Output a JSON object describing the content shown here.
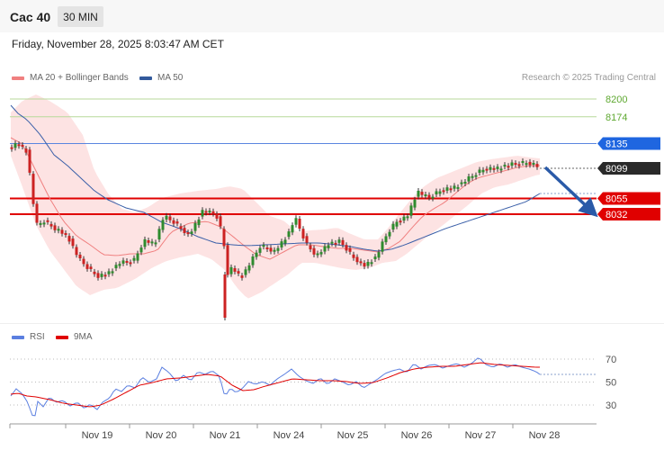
{
  "header": {
    "instrument": "Cac 40",
    "timeframe": "30 MIN",
    "datetime": "Friday, November 28, 2025 8:03:47 AM CET"
  },
  "legend": {
    "ma20_label": "MA 20 + Bollinger Bands",
    "ma20_color": "#f08080",
    "ma50_label": "MA 50",
    "ma50_color": "#335a9c",
    "rsi_label": "RSI",
    "rsi_color": "#5b7fe0",
    "ma9_label": "9MA",
    "ma9_color": "#e00000",
    "copyright": "Research © 2025 Trading Central"
  },
  "chart_data": [
    {
      "type": "candlestick",
      "title": "",
      "x_labels": [
        "Nov 19",
        "Nov 20",
        "Nov 21",
        "Nov 24",
        "Nov 25",
        "Nov 26",
        "Nov 27",
        "Nov 28"
      ],
      "ylim": [
        7830,
        8240
      ],
      "levels": [
        {
          "value": 8200,
          "label": "8200",
          "kind": "target",
          "color": "#5ea830"
        },
        {
          "value": 8174,
          "label": "8174",
          "kind": "target",
          "color": "#5ea830"
        },
        {
          "value": 8135,
          "label": "8135",
          "kind": "pivot",
          "color": "#2060d8"
        },
        {
          "value": 8099,
          "label": "8099",
          "kind": "last",
          "color": "#333333"
        },
        {
          "value": 8055,
          "label": "8055",
          "kind": "support",
          "color": "#e00000"
        },
        {
          "value": 8032,
          "label": "8032",
          "kind": "support",
          "color": "#e00000"
        }
      ],
      "series": [
        {
          "name": "MA 20 + Bollinger Bands"
        },
        {
          "name": "MA 50"
        }
      ]
    },
    {
      "type": "line",
      "ylim": [
        15,
        85
      ],
      "yticks": [
        "70",
        "50",
        "30"
      ],
      "series": [
        {
          "name": "RSI"
        },
        {
          "name": "9MA"
        }
      ]
    }
  ]
}
